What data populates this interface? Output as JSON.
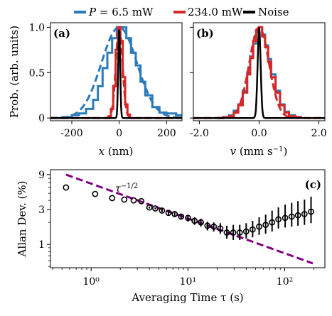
{
  "colors": {
    "blue": "#2b7bba",
    "red": "#d62728",
    "black": "#000000",
    "purple": "#800080"
  },
  "legend": {
    "entries": [
      {
        "label": "P = 6.5 mW",
        "color": "#2b7bba",
        "label_parts": [
          "P",
          " = 6.5 mW"
        ]
      },
      {
        "label": "234.0 mW",
        "color": "#d62728"
      },
      {
        "label": "Noise",
        "color": "#000000"
      }
    ]
  },
  "chart_data": [
    {
      "panel_label": "(a)",
      "type": "line",
      "xlabel": "x (nm)",
      "ylabel": "Prob. (arb. units)",
      "xlim": [
        -290,
        265
      ],
      "ylim": [
        -0.03,
        1.05
      ],
      "xticks": [
        -200,
        0,
        200
      ],
      "xtick_labels": [
        "-200",
        "0",
        "200"
      ],
      "yticks": [
        0,
        0.5,
        1.0
      ],
      "ytick_labels": [
        "0",
        "0.5",
        "1.0"
      ],
      "series": [
        {
          "name": "P = 6.5 mW",
          "color": "#2b7bba",
          "style": "step",
          "x": [
            -280,
            -240,
            -200,
            -170,
            -140,
            -110,
            -90,
            -70,
            -50,
            -30,
            -10,
            10,
            30,
            50,
            70,
            90,
            110,
            140,
            170,
            200,
            240,
            260
          ],
          "values": [
            0.0,
            0.01,
            0.03,
            0.05,
            0.1,
            0.2,
            0.35,
            0.55,
            0.72,
            0.88,
            1.0,
            1.0,
            0.88,
            0.72,
            0.58,
            0.4,
            0.25,
            0.12,
            0.06,
            0.05,
            0.03,
            0.0
          ]
        },
        {
          "name": "P = 6.5 mW fit",
          "color": "#2b7bba",
          "style": "dashed",
          "gauss": {
            "mu": 0,
            "sigma": 75,
            "amp": 1.0
          }
        },
        {
          "name": "234.0 mW",
          "color": "#d62728",
          "style": "step",
          "x": [
            -60,
            -45,
            -35,
            -25,
            -15,
            -5,
            5,
            15,
            25,
            35,
            45,
            60
          ],
          "values": [
            0.0,
            0.02,
            0.1,
            0.35,
            0.75,
            1.0,
            0.85,
            0.45,
            0.15,
            0.04,
            0.0,
            0.0
          ]
        },
        {
          "name": "234.0 mW fit",
          "color": "#d62728",
          "style": "dashed",
          "gauss": {
            "mu": 0,
            "sigma": 14,
            "amp": 1.0
          }
        },
        {
          "name": "Noise",
          "color": "#000000",
          "style": "line",
          "gauss": {
            "mu": 0,
            "sigma": 4,
            "amp": 1.0
          }
        }
      ]
    },
    {
      "panel_label": "(b)",
      "type": "line",
      "xlabel": "v (mm s⁻¹)",
      "ylabel": "",
      "xlim": [
        -2.2,
        2.2
      ],
      "ylim": [
        -0.03,
        1.05
      ],
      "xticks": [
        -2.0,
        0.0,
        2.0
      ],
      "xtick_labels": [
        "-2.0",
        "0.0",
        "2.0"
      ],
      "yticks": [
        0,
        0.5,
        1.0
      ],
      "ytick_labels": [
        "",
        "",
        ""
      ],
      "series": [
        {
          "name": "P = 6.5 mW",
          "color": "#2b7bba",
          "style": "step",
          "x": [
            -1.4,
            -1.2,
            -1.0,
            -0.85,
            -0.7,
            -0.55,
            -0.4,
            -0.3,
            -0.2,
            -0.1,
            0.0,
            0.1,
            0.2,
            0.3,
            0.4,
            0.55,
            0.7,
            0.85,
            1.0,
            1.2,
            1.4
          ],
          "values": [
            0.0,
            0.01,
            0.03,
            0.08,
            0.15,
            0.3,
            0.5,
            0.68,
            0.82,
            0.95,
            1.0,
            0.92,
            0.8,
            0.65,
            0.48,
            0.3,
            0.15,
            0.07,
            0.03,
            0.01,
            0.0
          ]
        },
        {
          "name": "234.0 mW",
          "color": "#d62728",
          "style": "step",
          "x": [
            -1.4,
            -1.2,
            -1.0,
            -0.85,
            -0.7,
            -0.55,
            -0.4,
            -0.3,
            -0.2,
            -0.1,
            0.0,
            0.1,
            0.2,
            0.3,
            0.4,
            0.55,
            0.7,
            0.85,
            1.0,
            1.2,
            1.4
          ],
          "values": [
            0.0,
            0.01,
            0.02,
            0.06,
            0.14,
            0.28,
            0.48,
            0.66,
            0.85,
            0.97,
            1.0,
            0.9,
            0.78,
            0.62,
            0.45,
            0.28,
            0.14,
            0.06,
            0.02,
            0.01,
            0.0
          ]
        },
        {
          "name": "fit",
          "color": "#d62728",
          "style": "dashed",
          "gauss": {
            "mu": 0,
            "sigma": 0.33,
            "amp": 1.0
          }
        },
        {
          "name": "Noise",
          "color": "#000000",
          "style": "line",
          "gauss": {
            "mu": 0,
            "sigma": 0.05,
            "amp": 1.0
          }
        }
      ]
    },
    {
      "panel_label": "(c)",
      "type": "scatter",
      "scale": "log-log",
      "xlabel": "Averaging Time τ (s)",
      "ylabel": "Allan Dev. (%)",
      "xlim": [
        0.38,
        260
      ],
      "ylim": [
        0.48,
        10.5
      ],
      "xticks": [
        1,
        10,
        100
      ],
      "xtick_labels": [
        "10⁰",
        "10¹",
        "10²"
      ],
      "yticks": [
        1,
        3,
        9
      ],
      "ytick_labels": [
        "1",
        "3",
        "9"
      ],
      "annotation": "τ^−1/2",
      "annotation_parts": [
        "τ",
        "−1/2"
      ],
      "series": [
        {
          "name": "Allan deviation",
          "color": "#000000",
          "style": "markers-errorbars",
          "x": [
            0.55,
            1.1,
            1.65,
            2.2,
            2.75,
            3.3,
            4.0,
            4.6,
            5.4,
            6.3,
            7.3,
            8.5,
            10,
            11.7,
            13.6,
            15.9,
            18.5,
            21.6,
            25.2,
            29.4,
            34.3,
            40,
            46.6,
            54.4,
            63.5,
            74,
            86,
            101,
            118,
            137,
            160,
            187
          ],
          "values": [
            6.0,
            4.9,
            4.3,
            4.1,
            4.0,
            3.9,
            3.2,
            3.1,
            2.9,
            2.7,
            2.6,
            2.4,
            2.3,
            2.1,
            2.0,
            1.8,
            1.75,
            1.65,
            1.45,
            1.45,
            1.45,
            1.5,
            1.6,
            1.75,
            1.85,
            2.0,
            2.2,
            2.3,
            2.4,
            2.5,
            2.6,
            2.8
          ],
          "err_lo": [
            0,
            0,
            0,
            0,
            0,
            0,
            0.1,
            0.1,
            0.15,
            0.15,
            0.2,
            0.2,
            0.25,
            0.25,
            0.25,
            0.25,
            0.25,
            0.25,
            0.25,
            0.3,
            0.3,
            0.3,
            0.35,
            0.4,
            0.45,
            0.5,
            0.55,
            0.6,
            0.65,
            0.7,
            0.75,
            0.85
          ],
          "err_hi": [
            0,
            0,
            0,
            0,
            0,
            0,
            0.1,
            0.1,
            0.15,
            0.15,
            0.2,
            0.2,
            0.25,
            0.25,
            0.25,
            0.25,
            0.25,
            0.3,
            0.35,
            0.4,
            0.4,
            0.45,
            0.5,
            0.6,
            0.7,
            0.9,
            1.0,
            1.2,
            1.3,
            1.4,
            1.5,
            1.7
          ]
        },
        {
          "name": "τ^−1/2",
          "color": "#800080",
          "style": "dashed",
          "x": [
            0.55,
            195
          ],
          "values": [
            9.0,
            0.55
          ]
        }
      ]
    }
  ]
}
